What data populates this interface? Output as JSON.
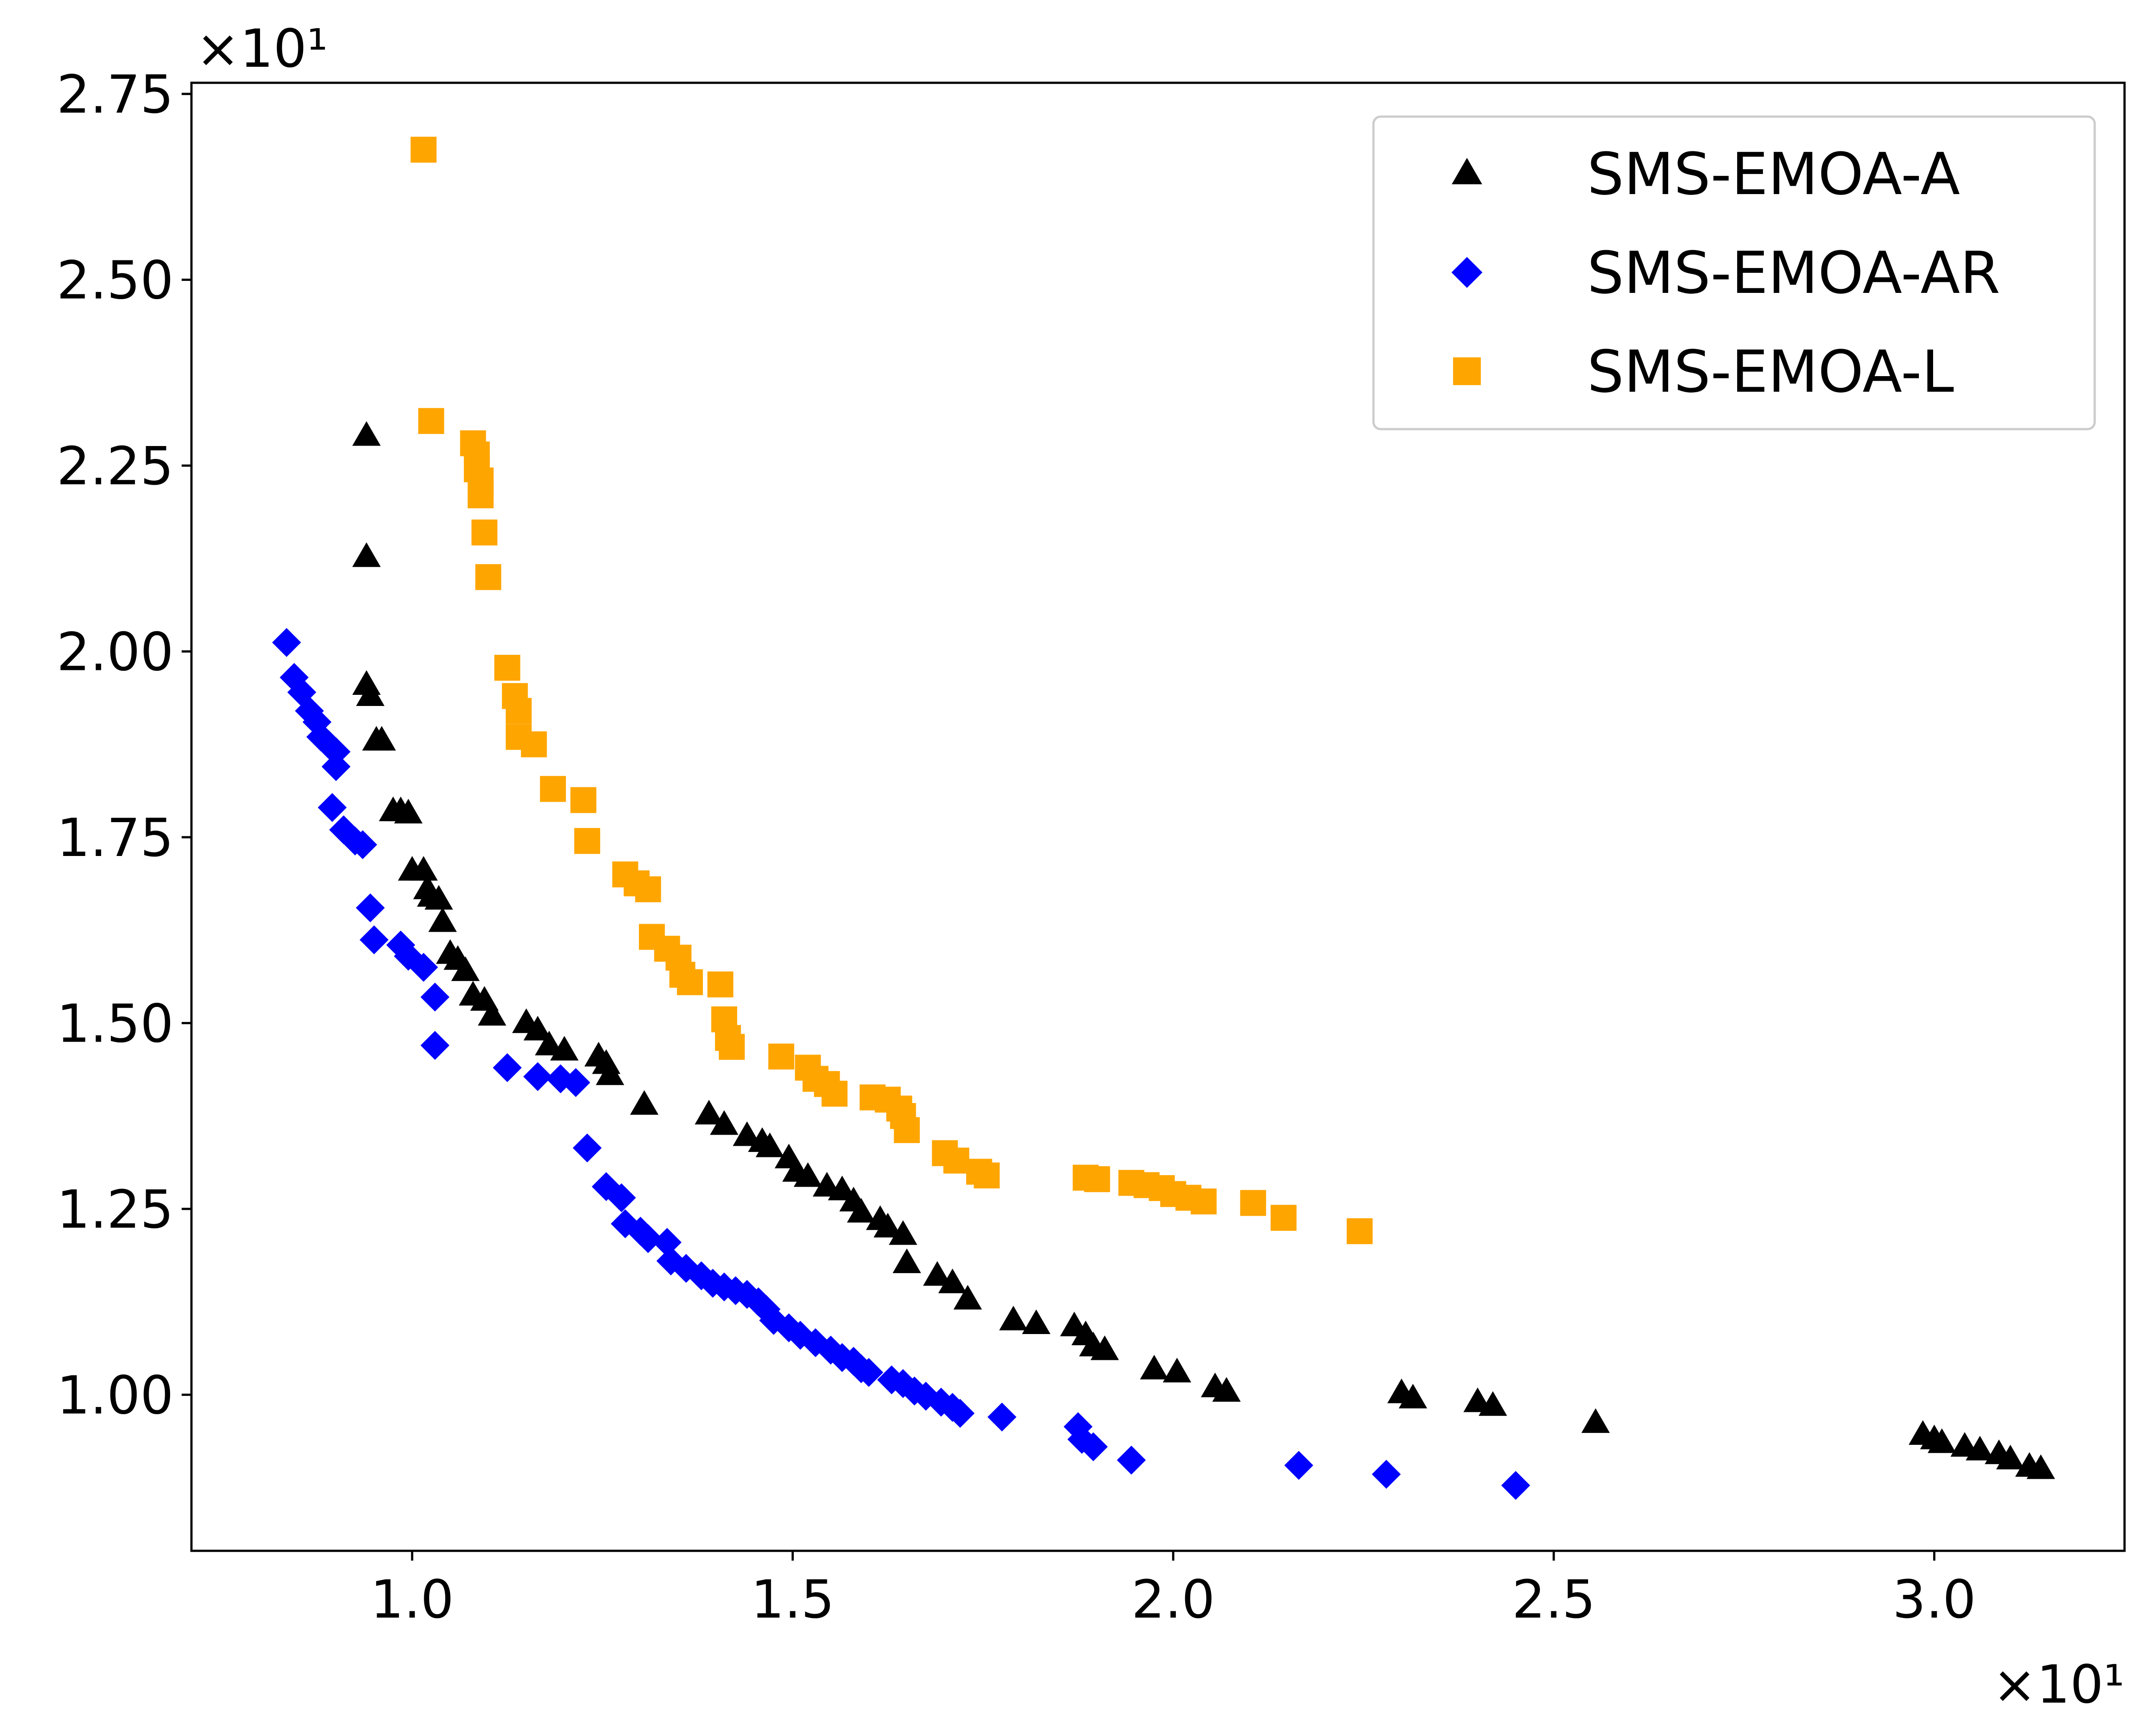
{
  "chart_data": {
    "type": "scatter",
    "title": "",
    "xlabel": "",
    "ylabel": "",
    "x_offset_text": "×10¹",
    "y_offset_text": "×10¹",
    "xlim": [
      0.71,
      3.25
    ],
    "ylim": [
      0.79,
      2.765
    ],
    "x_ticks": [
      1.0,
      1.5,
      2.0,
      2.5,
      3.0
    ],
    "x_tick_labels": [
      "1.0",
      "1.5",
      "2.0",
      "2.5",
      "3.0"
    ],
    "y_ticks": [
      1.0,
      1.25,
      1.5,
      1.75,
      2.0,
      2.25,
      2.5,
      2.75
    ],
    "y_tick_labels": [
      "1.00",
      "1.25",
      "1.50",
      "1.75",
      "2.00",
      "2.25",
      "2.50",
      "2.75"
    ],
    "grid": false,
    "legend_position": "top-right",
    "series": [
      {
        "name": "SMS-EMOA-A",
        "marker": "triangle",
        "color": "#000000",
        "points": [
          [
            0.94,
            2.29
          ],
          [
            0.94,
            2.127
          ],
          [
            0.94,
            1.955
          ],
          [
            0.945,
            1.94
          ],
          [
            0.953,
            1.88
          ],
          [
            0.96,
            1.88
          ],
          [
            0.975,
            1.785
          ],
          [
            0.985,
            1.785
          ],
          [
            0.995,
            1.782
          ],
          [
            1.0,
            1.705
          ],
          [
            1.015,
            1.705
          ],
          [
            1.02,
            1.68
          ],
          [
            1.025,
            1.67
          ],
          [
            1.035,
            1.666
          ],
          [
            1.04,
            1.636
          ],
          [
            1.05,
            1.593
          ],
          [
            1.06,
            1.585
          ],
          [
            1.07,
            1.57
          ],
          [
            1.08,
            1.537
          ],
          [
            1.095,
            1.53
          ],
          [
            1.105,
            1.51
          ],
          [
            1.15,
            1.5
          ],
          [
            1.165,
            1.49
          ],
          [
            1.18,
            1.47
          ],
          [
            1.2,
            1.463
          ],
          [
            1.245,
            1.455
          ],
          [
            1.255,
            1.445
          ],
          [
            1.26,
            1.43
          ],
          [
            1.305,
            1.39
          ],
          [
            1.39,
            1.377
          ],
          [
            1.41,
            1.363
          ],
          [
            1.44,
            1.348
          ],
          [
            1.46,
            1.34
          ],
          [
            1.47,
            1.333
          ],
          [
            1.495,
            1.318
          ],
          [
            1.505,
            1.3
          ],
          [
            1.52,
            1.293
          ],
          [
            1.545,
            1.28
          ],
          [
            1.565,
            1.275
          ],
          [
            1.58,
            1.26
          ],
          [
            1.59,
            1.245
          ],
          [
            1.615,
            1.235
          ],
          [
            1.625,
            1.225
          ],
          [
            1.645,
            1.215
          ],
          [
            1.65,
            1.177
          ],
          [
            1.69,
            1.16
          ],
          [
            1.71,
            1.15
          ],
          [
            1.73,
            1.128
          ],
          [
            1.79,
            1.1
          ],
          [
            1.82,
            1.095
          ],
          [
            1.87,
            1.092
          ],
          [
            1.885,
            1.08
          ],
          [
            1.895,
            1.065
          ],
          [
            1.91,
            1.06
          ],
          [
            1.975,
            1.034
          ],
          [
            2.005,
            1.03
          ],
          [
            2.055,
            1.01
          ],
          [
            2.07,
            1.004
          ],
          [
            2.3,
            1.002
          ],
          [
            2.315,
            0.995
          ],
          [
            2.4,
            0.99
          ],
          [
            2.42,
            0.985
          ],
          [
            2.555,
            0.962
          ],
          [
            2.985,
            0.946
          ],
          [
            3.0,
            0.94
          ],
          [
            3.01,
            0.935
          ],
          [
            3.04,
            0.93
          ],
          [
            3.06,
            0.925
          ],
          [
            3.085,
            0.92
          ],
          [
            3.1,
            0.913
          ],
          [
            3.125,
            0.903
          ],
          [
            3.14,
            0.9
          ]
        ]
      },
      {
        "name": "SMS-EMOA-AR",
        "marker": "diamond",
        "color": "#0000ff",
        "points": [
          [
            0.835,
            2.012
          ],
          [
            0.845,
            1.965
          ],
          [
            0.855,
            1.945
          ],
          [
            0.865,
            1.92
          ],
          [
            0.875,
            1.905
          ],
          [
            0.88,
            1.885
          ],
          [
            0.89,
            1.875
          ],
          [
            0.9,
            1.865
          ],
          [
            0.9,
            1.845
          ],
          [
            0.895,
            1.79
          ],
          [
            0.91,
            1.76
          ],
          [
            0.925,
            1.745
          ],
          [
            0.935,
            1.74
          ],
          [
            0.945,
            1.655
          ],
          [
            0.95,
            1.612
          ],
          [
            0.985,
            1.605
          ],
          [
            0.995,
            1.59
          ],
          [
            1.015,
            1.575
          ],
          [
            1.03,
            1.535
          ],
          [
            1.03,
            1.47
          ],
          [
            1.125,
            1.44
          ],
          [
            1.165,
            1.428
          ],
          [
            1.195,
            1.425
          ],
          [
            1.215,
            1.42
          ],
          [
            1.23,
            1.332
          ],
          [
            1.255,
            1.28
          ],
          [
            1.275,
            1.265
          ],
          [
            1.28,
            1.23
          ],
          [
            1.3,
            1.22
          ],
          [
            1.31,
            1.21
          ],
          [
            1.335,
            1.205
          ],
          [
            1.34,
            1.18
          ],
          [
            1.36,
            1.17
          ],
          [
            1.38,
            1.16
          ],
          [
            1.395,
            1.15
          ],
          [
            1.41,
            1.145
          ],
          [
            1.425,
            1.14
          ],
          [
            1.44,
            1.135
          ],
          [
            1.455,
            1.125
          ],
          [
            1.465,
            1.115
          ],
          [
            1.475,
            1.1
          ],
          [
            1.495,
            1.09
          ],
          [
            1.51,
            1.08
          ],
          [
            1.53,
            1.07
          ],
          [
            1.55,
            1.06
          ],
          [
            1.565,
            1.05
          ],
          [
            1.58,
            1.045
          ],
          [
            1.59,
            1.035
          ],
          [
            1.6,
            1.03
          ],
          [
            1.63,
            1.02
          ],
          [
            1.645,
            1.015
          ],
          [
            1.66,
            1.005
          ],
          [
            1.675,
            0.998
          ],
          [
            1.695,
            0.99
          ],
          [
            1.71,
            0.983
          ],
          [
            1.72,
            0.975
          ],
          [
            1.775,
            0.97
          ],
          [
            1.875,
            0.957
          ],
          [
            1.88,
            0.94
          ],
          [
            1.895,
            0.93
          ],
          [
            1.945,
            0.912
          ],
          [
            2.165,
            0.905
          ],
          [
            2.28,
            0.893
          ],
          [
            2.45,
            0.878
          ]
        ]
      },
      {
        "name": "SMS-EMOA-L",
        "marker": "square",
        "color": "#ffa500",
        "points": [
          [
            1.015,
            2.675
          ],
          [
            1.025,
            2.31
          ],
          [
            1.08,
            2.28
          ],
          [
            1.085,
            2.265
          ],
          [
            1.085,
            2.245
          ],
          [
            1.09,
            2.23
          ],
          [
            1.09,
            2.21
          ],
          [
            1.095,
            2.16
          ],
          [
            1.1,
            2.1
          ],
          [
            1.125,
            1.978
          ],
          [
            1.135,
            1.94
          ],
          [
            1.14,
            1.92
          ],
          [
            1.14,
            1.885
          ],
          [
            1.16,
            1.875
          ],
          [
            1.185,
            1.815
          ],
          [
            1.225,
            1.8
          ],
          [
            1.23,
            1.745
          ],
          [
            1.28,
            1.7
          ],
          [
            1.295,
            1.688
          ],
          [
            1.31,
            1.68
          ],
          [
            1.315,
            1.616
          ],
          [
            1.335,
            1.6
          ],
          [
            1.35,
            1.588
          ],
          [
            1.355,
            1.565
          ],
          [
            1.365,
            1.555
          ],
          [
            1.405,
            1.552
          ],
          [
            1.41,
            1.505
          ],
          [
            1.415,
            1.48
          ],
          [
            1.42,
            1.468
          ],
          [
            1.485,
            1.455
          ],
          [
            1.52,
            1.44
          ],
          [
            1.53,
            1.425
          ],
          [
            1.545,
            1.418
          ],
          [
            1.555,
            1.405
          ],
          [
            1.605,
            1.4
          ],
          [
            1.625,
            1.397
          ],
          [
            1.64,
            1.385
          ],
          [
            1.645,
            1.375
          ],
          [
            1.65,
            1.356
          ],
          [
            1.7,
            1.325
          ],
          [
            1.715,
            1.315
          ],
          [
            1.745,
            1.3
          ],
          [
            1.755,
            1.295
          ],
          [
            1.885,
            1.292
          ],
          [
            1.9,
            1.29
          ],
          [
            1.945,
            1.285
          ],
          [
            1.965,
            1.282
          ],
          [
            1.985,
            1.278
          ],
          [
            2.0,
            1.27
          ],
          [
            2.02,
            1.265
          ],
          [
            2.04,
            1.26
          ],
          [
            2.105,
            1.258
          ],
          [
            2.145,
            1.238
          ],
          [
            2.245,
            1.22
          ]
        ]
      }
    ]
  }
}
